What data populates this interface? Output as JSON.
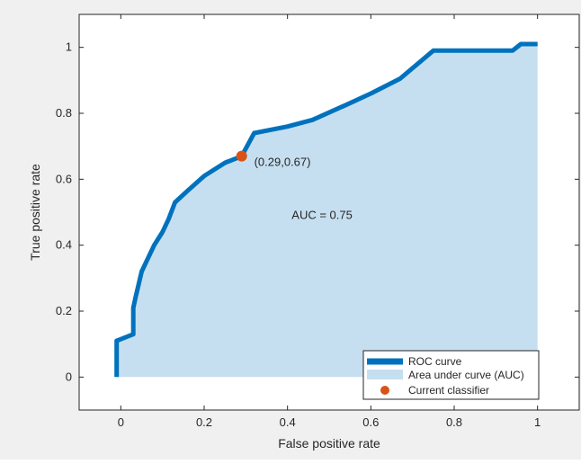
{
  "chart_data": {
    "type": "line",
    "title": "",
    "xlabel": "False positive rate",
    "ylabel": "True positive rate",
    "xlim": [
      -0.1,
      1.1
    ],
    "ylim": [
      -0.1,
      1.1
    ],
    "x_ticks": [
      0,
      0.2,
      0.4,
      0.6,
      0.8,
      1
    ],
    "x_tick_labels": [
      "0",
      "0.2",
      "0.4",
      "0.6",
      "0.8",
      "1"
    ],
    "y_ticks": [
      0,
      0.2,
      0.4,
      0.6,
      0.8,
      1
    ],
    "y_tick_labels": [
      "0",
      "0.2",
      "0.4",
      "0.6",
      "0.8",
      "1"
    ],
    "grid": false,
    "legend_position": "bottom-right",
    "series": [
      {
        "name": "ROC curve",
        "color": "#0072bd",
        "x": [
          -0.01,
          -0.01,
          0.0,
          0.03,
          0.03,
          0.035,
          0.05,
          0.08,
          0.1,
          0.115,
          0.13,
          0.16,
          0.2,
          0.25,
          0.29,
          0.32,
          0.4,
          0.46,
          0.54,
          0.6,
          0.67,
          0.75,
          0.8,
          0.85,
          0.9,
          0.94,
          0.96,
          1.0
        ],
        "y": [
          0.0,
          0.11,
          0.115,
          0.13,
          0.21,
          0.24,
          0.32,
          0.4,
          0.44,
          0.48,
          0.53,
          0.565,
          0.61,
          0.65,
          0.67,
          0.74,
          0.76,
          0.78,
          0.825,
          0.86,
          0.905,
          0.99,
          0.99,
          0.99,
          0.99,
          0.99,
          1.01,
          1.01
        ]
      },
      {
        "name": "Area under curve (AUC)",
        "color": "#c6dff0",
        "fill_between": "ROC curve"
      },
      {
        "name": "Current classifier",
        "color": "#d95319",
        "x": [
          0.29
        ],
        "y": [
          0.67
        ]
      }
    ],
    "annotations": [
      {
        "text": "(0.29,0.67)",
        "x": 0.32,
        "y": 0.64
      },
      {
        "text": "AUC = 0.75",
        "x": 0.41,
        "y": 0.48
      }
    ]
  }
}
